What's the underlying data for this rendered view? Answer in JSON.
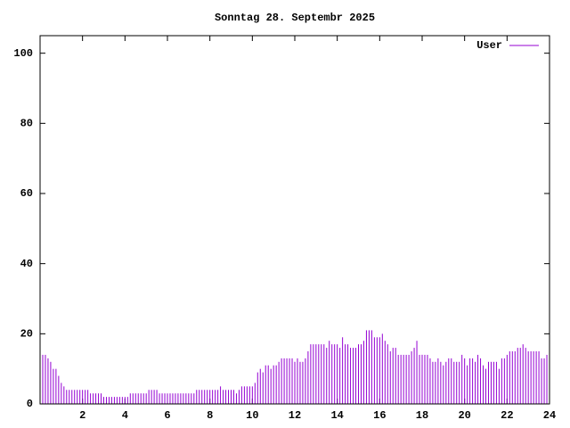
{
  "chart_data": {
    "type": "impulses",
    "title": "Sonntag 28. Septembr 2025",
    "series": [
      {
        "name": "User",
        "color": "#9400d3",
        "x": [
          0,
          0.125,
          0.25,
          0.375,
          0.5,
          0.625,
          0.75,
          0.875,
          1,
          1.125,
          1.25,
          1.375,
          1.5,
          1.625,
          1.75,
          1.875,
          2,
          2.125,
          2.25,
          2.375,
          2.5,
          2.625,
          2.75,
          2.875,
          3,
          3.125,
          3.25,
          3.375,
          3.5,
          3.625,
          3.75,
          3.875,
          4,
          4.125,
          4.25,
          4.375,
          4.5,
          4.625,
          4.75,
          4.875,
          5,
          5.125,
          5.25,
          5.375,
          5.5,
          5.625,
          5.75,
          5.875,
          6,
          6.125,
          6.25,
          6.375,
          6.5,
          6.625,
          6.75,
          6.875,
          7,
          7.125,
          7.25,
          7.375,
          7.5,
          7.625,
          7.75,
          7.875,
          8,
          8.125,
          8.25,
          8.375,
          8.5,
          8.625,
          8.75,
          8.875,
          9,
          9.125,
          9.25,
          9.375,
          9.5,
          9.625,
          9.75,
          9.875,
          10,
          10.125,
          10.25,
          10.375,
          10.5,
          10.625,
          10.75,
          10.875,
          11,
          11.125,
          11.25,
          11.375,
          11.5,
          11.625,
          11.75,
          11.875,
          12,
          12.125,
          12.25,
          12.375,
          12.5,
          12.625,
          12.75,
          12.875,
          13,
          13.125,
          13.25,
          13.375,
          13.5,
          13.625,
          13.75,
          13.875,
          14,
          14.125,
          14.25,
          14.375,
          14.5,
          14.625,
          14.75,
          14.875,
          15,
          15.125,
          15.25,
          15.375,
          15.5,
          15.625,
          15.75,
          15.875,
          16,
          16.125,
          16.25,
          16.375,
          16.5,
          16.625,
          16.75,
          16.875,
          17,
          17.125,
          17.25,
          17.375,
          17.5,
          17.625,
          17.75,
          17.875,
          18,
          18.125,
          18.25,
          18.375,
          18.5,
          18.625,
          18.75,
          18.875,
          19,
          19.125,
          19.25,
          19.375,
          19.5,
          19.625,
          19.75,
          19.875,
          20,
          20.125,
          20.25,
          20.375,
          20.5,
          20.625,
          20.75,
          20.875,
          21,
          21.125,
          21.25,
          21.375,
          21.5,
          21.625,
          21.75,
          21.875,
          22,
          22.125,
          22.25,
          22.375,
          22.5,
          22.625,
          22.75,
          22.875,
          23,
          23.125,
          23.25,
          23.375,
          23.5,
          23.625,
          23.75,
          23.875,
          24
        ],
        "values": [
          15,
          14,
          14,
          13,
          12,
          10,
          10,
          8,
          6,
          5,
          4,
          4,
          4,
          4,
          4,
          4,
          4,
          4,
          4,
          3,
          3,
          3,
          3,
          3,
          2,
          2,
          2,
          2,
          2,
          2,
          2,
          2,
          2,
          2,
          3,
          3,
          3,
          3,
          3,
          3,
          3,
          4,
          4,
          4,
          4,
          3,
          3,
          3,
          3,
          3,
          3,
          3,
          3,
          3,
          3,
          3,
          3,
          3,
          3,
          4,
          4,
          4,
          4,
          4,
          4,
          4,
          4,
          4,
          5,
          4,
          4,
          4,
          4,
          4,
          3,
          4,
          5,
          5,
          5,
          5,
          5,
          6,
          9,
          10,
          9,
          11,
          11,
          10,
          11,
          11,
          12,
          13,
          13,
          13,
          13,
          13,
          12,
          13,
          12,
          12,
          13,
          15,
          17,
          17,
          17,
          17,
          17,
          17,
          16,
          18,
          17,
          17,
          17,
          16,
          19,
          17,
          17,
          16,
          16,
          16,
          17,
          17,
          18,
          21,
          21,
          21,
          19,
          19,
          19,
          20,
          18,
          17,
          15,
          16,
          16,
          14,
          14,
          14,
          14,
          14,
          15,
          16,
          18,
          14,
          14,
          14,
          14,
          13,
          12,
          12,
          13,
          12,
          11,
          12,
          13,
          13,
          12,
          12,
          12,
          14,
          13,
          11,
          13,
          13,
          12,
          14,
          13,
          11,
          10,
          12,
          12,
          12,
          12,
          10,
          13,
          13,
          14,
          15,
          15,
          15,
          16,
          16,
          17,
          16,
          15,
          15,
          15,
          15,
          15,
          13,
          13,
          14,
          14
        ]
      }
    ],
    "xlim": [
      0,
      24
    ],
    "xticks": [
      2,
      4,
      6,
      8,
      10,
      12,
      14,
      16,
      18,
      20,
      22,
      24
    ],
    "ylim": [
      0,
      105
    ],
    "yticks": [
      0,
      20,
      40,
      60,
      80,
      100
    ],
    "legend": "top-right"
  }
}
